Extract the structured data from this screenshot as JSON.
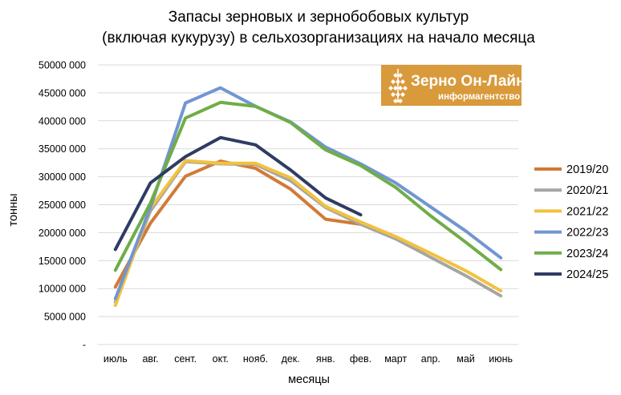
{
  "chart_data": {
    "type": "line",
    "title_lines": [
      "Запасы зерновых и зернобобовых культур",
      "(включая кукурузу) в сельхозорганизациях на начало месяца"
    ],
    "xlabel": "месяцы",
    "ylabel": "тонны",
    "categories": [
      "июль",
      "авг.",
      "сент.",
      "окт.",
      "нояб.",
      "дек.",
      "янв.",
      "фев.",
      "март",
      "апр.",
      "май",
      "июнь"
    ],
    "ylim": [
      0,
      50000
    ],
    "yticks": [
      {
        "value": 0,
        "label": "-"
      },
      {
        "value": 5000,
        "label": "5000 000"
      },
      {
        "value": 10000,
        "label": "10000 000"
      },
      {
        "value": 15000,
        "label": "15000 000"
      },
      {
        "value": 20000,
        "label": "20000 000"
      },
      {
        "value": 25000,
        "label": "25000 000"
      },
      {
        "value": 30000,
        "label": "30000 000"
      },
      {
        "value": 35000,
        "label": "35000 000"
      },
      {
        "value": 40000,
        "label": "40000 000"
      },
      {
        "value": 45000,
        "label": "45000 000"
      },
      {
        "value": 50000,
        "label": "50000 000"
      }
    ],
    "grid": true,
    "legend_position": "right",
    "series": [
      {
        "name": "2019/20",
        "color": "#d07b36",
        "values": [
          10300,
          21700,
          30100,
          32800,
          31500,
          27800,
          22400,
          21500,
          null,
          null,
          null,
          null
        ]
      },
      {
        "name": "2020/21",
        "color": "#a5a5a5",
        "values": [
          7600,
          23900,
          32700,
          32300,
          32200,
          29300,
          24500,
          21500,
          18900,
          15600,
          12300,
          8700
        ]
      },
      {
        "name": "2021/22",
        "color": "#f2c23e",
        "values": [
          7000,
          24400,
          32900,
          32400,
          32400,
          29800,
          24700,
          21900,
          19300,
          16300,
          13200,
          9600
        ]
      },
      {
        "name": "2022/23",
        "color": "#7196d1",
        "values": [
          8200,
          24500,
          43200,
          45900,
          42600,
          39800,
          35300,
          32300,
          28900,
          24600,
          20300,
          15500
        ]
      },
      {
        "name": "2023/24",
        "color": "#70ad47",
        "values": [
          13300,
          25300,
          40500,
          43300,
          42600,
          39700,
          34800,
          32000,
          28100,
          23000,
          18300,
          13400
        ]
      },
      {
        "name": "2024/25",
        "color": "#2f3b63",
        "values": [
          17000,
          28900,
          33600,
          37000,
          35700,
          31200,
          26200,
          23200,
          null,
          null,
          null,
          null
        ]
      }
    ]
  },
  "logo": {
    "name": "Зерно Он-Лайн",
    "subtitle": "информагентство",
    "bg_color": "#d99a3c",
    "icon": "wheat-ear-icon"
  }
}
